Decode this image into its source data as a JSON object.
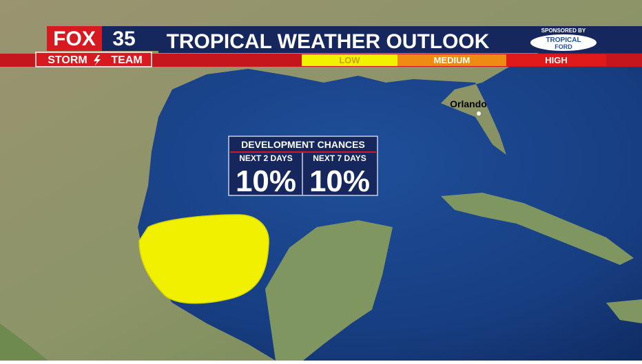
{
  "header": {
    "logo_fox": "FOX",
    "logo_number": "35",
    "logo_storm": "STORM",
    "logo_team": "TEAM",
    "title": "TROPICAL WEATHER OUTLOOK",
    "sponsor_label": "SPONSORED BY",
    "sponsor_name_top": "TROPICAL",
    "sponsor_name_bottom": "FORD"
  },
  "legend": {
    "items": [
      "LOW",
      "MEDIUM",
      "HIGH"
    ]
  },
  "map": {
    "city": "Orlando"
  },
  "info_box": {
    "title": "DEVELOPMENT CHANCES",
    "columns": [
      {
        "label": "NEXT 2 DAYS",
        "value": "10%"
      },
      {
        "label": "NEXT 7 DAYS",
        "value": "10%"
      }
    ]
  }
}
